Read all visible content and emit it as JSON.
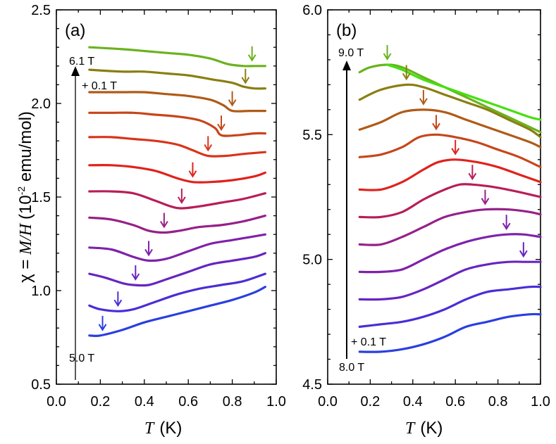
{
  "chart_data": [
    {
      "panel_label": "(a)",
      "type": "line",
      "xlabel_symbol": "T",
      "xlabel_unit": "(K)",
      "ylabel_prefix": "χ = ",
      "ylabel_symbol": "M/H",
      "ylabel_unit_open": "(10",
      "ylabel_unit_exp": "-2",
      "ylabel_unit_close": " emu/mol)",
      "xlim": [
        0.0,
        1.0
      ],
      "ylim": [
        0.5,
        2.5
      ],
      "xticks": [
        "0.0",
        "0.2",
        "0.4",
        "0.6",
        "0.8",
        "1.0"
      ],
      "yticks": [
        "0.5",
        "1.0",
        "1.5",
        "2.0",
        "2.5"
      ],
      "field_top_label": "6.1 T",
      "field_step_label": "+ 0.1 T",
      "field_bottom_label": "5.0 T",
      "series": [
        {
          "color": "#2a3fe0",
          "x": [
            0.15,
            0.2,
            0.3,
            0.4,
            0.5,
            0.6,
            0.7,
            0.8,
            0.9,
            0.95
          ],
          "y": [
            0.76,
            0.76,
            0.79,
            0.83,
            0.86,
            0.89,
            0.92,
            0.95,
            0.99,
            1.02
          ],
          "min_marker": [
            0.21,
            0.76
          ]
        },
        {
          "color": "#4a2ed6",
          "x": [
            0.15,
            0.2,
            0.28,
            0.35,
            0.45,
            0.55,
            0.65,
            0.75,
            0.85,
            0.95
          ],
          "y": [
            0.92,
            0.9,
            0.89,
            0.9,
            0.94,
            0.98,
            1.01,
            1.03,
            1.05,
            1.09
          ],
          "min_marker": [
            0.28,
            0.89
          ]
        },
        {
          "color": "#6625c0",
          "x": [
            0.15,
            0.22,
            0.3,
            0.35,
            0.42,
            0.5,
            0.6,
            0.7,
            0.8,
            0.9,
            0.95
          ],
          "y": [
            1.09,
            1.07,
            1.04,
            1.03,
            1.03,
            1.06,
            1.1,
            1.14,
            1.16,
            1.18,
            1.2
          ],
          "min_marker": [
            0.36,
            1.03
          ]
        },
        {
          "color": "#7e22aa",
          "x": [
            0.15,
            0.25,
            0.35,
            0.42,
            0.5,
            0.6,
            0.7,
            0.8,
            0.9,
            0.95
          ],
          "y": [
            1.23,
            1.22,
            1.18,
            1.16,
            1.17,
            1.21,
            1.25,
            1.27,
            1.29,
            1.3
          ],
          "min_marker": [
            0.42,
            1.16
          ]
        },
        {
          "color": "#962088",
          "x": [
            0.15,
            0.25,
            0.35,
            0.42,
            0.49,
            0.56,
            0.65,
            0.75,
            0.85,
            0.95
          ],
          "y": [
            1.39,
            1.38,
            1.35,
            1.32,
            1.31,
            1.32,
            1.34,
            1.35,
            1.37,
            1.4
          ],
          "min_marker": [
            0.49,
            1.31
          ]
        },
        {
          "color": "#b81e58",
          "x": [
            0.15,
            0.25,
            0.35,
            0.45,
            0.52,
            0.57,
            0.65,
            0.75,
            0.85,
            0.95
          ],
          "y": [
            1.53,
            1.53,
            1.52,
            1.48,
            1.45,
            1.44,
            1.45,
            1.47,
            1.49,
            1.52
          ],
          "min_marker": [
            0.57,
            1.44
          ]
        },
        {
          "color": "#e0221c",
          "x": [
            0.15,
            0.25,
            0.35,
            0.45,
            0.55,
            0.62,
            0.7,
            0.8,
            0.9,
            0.95
          ],
          "y": [
            1.67,
            1.67,
            1.66,
            1.64,
            1.6,
            1.58,
            1.58,
            1.59,
            1.61,
            1.63
          ],
          "min_marker": [
            0.62,
            1.58
          ]
        },
        {
          "color": "#d8341a",
          "x": [
            0.15,
            0.25,
            0.35,
            0.45,
            0.55,
            0.62,
            0.69,
            0.77,
            0.85,
            0.95
          ],
          "y": [
            1.82,
            1.82,
            1.81,
            1.8,
            1.78,
            1.75,
            1.72,
            1.72,
            1.73,
            1.74
          ],
          "min_marker": [
            0.69,
            1.72
          ]
        },
        {
          "color": "#c6461a",
          "x": [
            0.15,
            0.25,
            0.35,
            0.45,
            0.55,
            0.65,
            0.72,
            0.75,
            0.82,
            0.9,
            0.95
          ],
          "y": [
            1.95,
            1.95,
            1.95,
            1.94,
            1.93,
            1.91,
            1.87,
            1.83,
            1.83,
            1.84,
            1.84
          ],
          "min_marker": [
            0.75,
            1.83
          ]
        },
        {
          "color": "#b05a16",
          "x": [
            0.15,
            0.3,
            0.4,
            0.5,
            0.6,
            0.7,
            0.76,
            0.8,
            0.88,
            0.95
          ],
          "y": [
            2.06,
            2.06,
            2.06,
            2.05,
            2.04,
            2.02,
            1.99,
            1.96,
            1.96,
            1.96
          ],
          "min_marker": [
            0.8,
            1.96
          ]
        },
        {
          "color": "#8a7e10",
          "x": [
            0.15,
            0.3,
            0.4,
            0.5,
            0.6,
            0.7,
            0.8,
            0.85,
            0.9,
            0.95
          ],
          "y": [
            2.18,
            2.17,
            2.17,
            2.16,
            2.15,
            2.13,
            2.11,
            2.09,
            2.08,
            2.08
          ],
          "min_marker": [
            0.86,
            2.08
          ]
        },
        {
          "color": "#6ab21e",
          "x": [
            0.15,
            0.3,
            0.4,
            0.5,
            0.6,
            0.7,
            0.78,
            0.85,
            0.9,
            0.95
          ],
          "y": [
            2.3,
            2.29,
            2.28,
            2.27,
            2.26,
            2.24,
            2.21,
            2.2,
            2.2,
            2.2
          ],
          "min_marker": [
            0.89,
            2.2
          ]
        },
        {
          "color": "#44e010",
          "x": [],
          "y": [],
          "min_marker": null
        }
      ]
    },
    {
      "panel_label": "(b)",
      "type": "line",
      "xlabel_symbol": "T",
      "xlabel_unit": "(K)",
      "xlim": [
        0.0,
        1.0
      ],
      "ylim": [
        4.5,
        6.0
      ],
      "xticks": [
        "0.0",
        "0.2",
        "0.4",
        "0.6",
        "0.8",
        "1.0"
      ],
      "yticks": [
        "4.5",
        "5.0",
        "5.5",
        "6.0"
      ],
      "field_top_label": "9.0 T",
      "field_step_label": "+ 0.1 T",
      "field_bottom_label": "8.0 T",
      "series": [
        {
          "color": "#2a3fe0",
          "x": [
            0.15,
            0.25,
            0.35,
            0.45,
            0.55,
            0.65,
            0.75,
            0.85,
            0.95,
            1.0
          ],
          "y": [
            4.63,
            4.63,
            4.64,
            4.66,
            4.69,
            4.73,
            4.75,
            4.77,
            4.78,
            4.78
          ],
          "max_marker": null
        },
        {
          "color": "#4a2ed6",
          "x": [
            0.15,
            0.25,
            0.35,
            0.45,
            0.55,
            0.65,
            0.75,
            0.85,
            0.95,
            1.0
          ],
          "y": [
            4.73,
            4.74,
            4.75,
            4.77,
            4.8,
            4.84,
            4.87,
            4.88,
            4.89,
            4.89
          ],
          "max_marker": null
        },
        {
          "color": "#6625c0",
          "x": [
            0.15,
            0.25,
            0.35,
            0.45,
            0.55,
            0.65,
            0.75,
            0.85,
            0.93,
            1.0
          ],
          "y": [
            4.84,
            4.84,
            4.85,
            4.88,
            4.92,
            4.96,
            4.98,
            4.99,
            4.99,
            4.99
          ],
          "max_marker": [
            0.92,
            4.99
          ]
        },
        {
          "color": "#7e22aa",
          "x": [
            0.15,
            0.25,
            0.35,
            0.45,
            0.55,
            0.65,
            0.75,
            0.84,
            0.92,
            1.0
          ],
          "y": [
            4.95,
            4.95,
            4.96,
            5.0,
            5.04,
            5.07,
            5.09,
            5.1,
            5.1,
            5.09
          ],
          "max_marker": [
            0.84,
            5.1
          ]
        },
        {
          "color": "#962088",
          "x": [
            0.15,
            0.25,
            0.35,
            0.45,
            0.55,
            0.65,
            0.74,
            0.85,
            0.95,
            1.0
          ],
          "y": [
            5.06,
            5.06,
            5.09,
            5.13,
            5.17,
            5.19,
            5.2,
            5.2,
            5.19,
            5.18
          ],
          "max_marker": [
            0.74,
            5.2
          ]
        },
        {
          "color": "#b81e58",
          "x": [
            0.15,
            0.25,
            0.35,
            0.45,
            0.55,
            0.62,
            0.68,
            0.78,
            0.9,
            1.0
          ],
          "y": [
            5.17,
            5.17,
            5.19,
            5.24,
            5.28,
            5.3,
            5.3,
            5.29,
            5.27,
            5.25
          ],
          "max_marker": [
            0.68,
            5.3
          ]
        },
        {
          "color": "#e0221c",
          "x": [
            0.15,
            0.25,
            0.35,
            0.45,
            0.52,
            0.6,
            0.7,
            0.8,
            0.9,
            1.0
          ],
          "y": [
            5.28,
            5.28,
            5.31,
            5.36,
            5.39,
            5.4,
            5.39,
            5.37,
            5.34,
            5.31
          ],
          "max_marker": [
            0.6,
            5.4
          ]
        },
        {
          "color": "#c6461a",
          "x": [
            0.15,
            0.25,
            0.35,
            0.43,
            0.51,
            0.6,
            0.7,
            0.8,
            0.9,
            1.0
          ],
          "y": [
            5.41,
            5.42,
            5.45,
            5.49,
            5.5,
            5.49,
            5.47,
            5.44,
            5.41,
            5.37
          ],
          "max_marker": [
            0.51,
            5.5
          ]
        },
        {
          "color": "#b05a16",
          "x": [
            0.15,
            0.25,
            0.35,
            0.45,
            0.55,
            0.65,
            0.75,
            0.85,
            0.95,
            1.0
          ],
          "y": [
            5.52,
            5.55,
            5.59,
            5.6,
            5.59,
            5.56,
            5.53,
            5.5,
            5.47,
            5.45
          ],
          "max_marker": [
            0.45,
            5.6
          ]
        },
        {
          "color": "#8a7e10",
          "x": [
            0.15,
            0.25,
            0.37,
            0.45,
            0.55,
            0.65,
            0.75,
            0.85,
            0.95,
            1.0
          ],
          "y": [
            5.64,
            5.68,
            5.7,
            5.69,
            5.66,
            5.63,
            5.6,
            5.56,
            5.52,
            5.49
          ],
          "max_marker": [
            0.37,
            5.7
          ]
        },
        {
          "color": "#6ab21e",
          "x": [
            0.15,
            0.2,
            0.28,
            0.35,
            0.45,
            0.55,
            0.65,
            0.75,
            0.85,
            0.95,
            1.0
          ],
          "y": [
            5.75,
            5.77,
            5.78,
            5.77,
            5.73,
            5.69,
            5.65,
            5.61,
            5.57,
            5.53,
            5.51
          ],
          "max_marker": [
            0.28,
            5.78
          ]
        },
        {
          "color": "#44e010",
          "x": [
            0.28,
            0.35,
            0.45,
            0.55,
            0.65,
            0.75,
            0.85,
            0.95,
            1.0
          ],
          "y": [
            5.78,
            5.76,
            5.72,
            5.69,
            5.66,
            5.63,
            5.6,
            5.57,
            5.56
          ],
          "max_marker": null
        }
      ]
    }
  ]
}
